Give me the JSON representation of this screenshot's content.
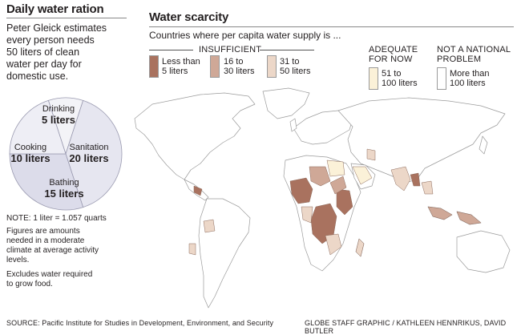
{
  "left": {
    "title": "Daily water ration",
    "intro": [
      "Peter Gleick estimates",
      "every person needs",
      "50 liters of clean",
      "water per day for",
      "domestic use."
    ],
    "pie": {
      "slices": [
        {
          "name": "Drinking",
          "value": 5,
          "label": "5 liters",
          "color": "#f3f3f7"
        },
        {
          "name": "Sanitation",
          "value": 20,
          "label": "20 liters",
          "color": "#e6e6f0"
        },
        {
          "name": "Bathing",
          "value": 15,
          "label": "15 liters",
          "color": "#dcdcea"
        },
        {
          "name": "Cooking",
          "value": 10,
          "label": "10 liters",
          "color": "#eeeef5"
        }
      ]
    },
    "note": "NOTE: 1 liter = 1.057 quarts",
    "figures": [
      "Figures are amounts",
      "needed in a moderate",
      "climate at average activity",
      "levels."
    ],
    "excludes": [
      "Excludes water required",
      "to grow food."
    ]
  },
  "map": {
    "title": "Water scarcity",
    "subtitle": "Countries where per capita water supply is ...",
    "insufficient_label": "INSUFFICIENT",
    "legend": [
      {
        "label": [
          "Less than",
          "5 liters"
        ],
        "color": "#a9725f"
      },
      {
        "label": [
          "16 to",
          "30 liters"
        ],
        "color": "#cfa897"
      },
      {
        "label": [
          "31 to",
          "50 liters"
        ],
        "color": "#ecd7c8"
      },
      {
        "label": [
          "51 to",
          "100 liters"
        ],
        "color": "#fbf1d8"
      },
      {
        "label": [
          "More than",
          "100 liters"
        ],
        "color": "#ffffff"
      }
    ],
    "adequate_label": [
      "ADEQUATE",
      "FOR NOW"
    ],
    "not_problem_label": [
      "NOT A NATIONAL",
      "PROBLEM"
    ]
  },
  "footer": {
    "source": "SOURCE: Pacific Institute for Studies in Development, Environment, and Security",
    "credit": "GLOBE STAFF GRAPHIC / KATHLEEN HENNRIKUS, DAVID BUTLER"
  }
}
